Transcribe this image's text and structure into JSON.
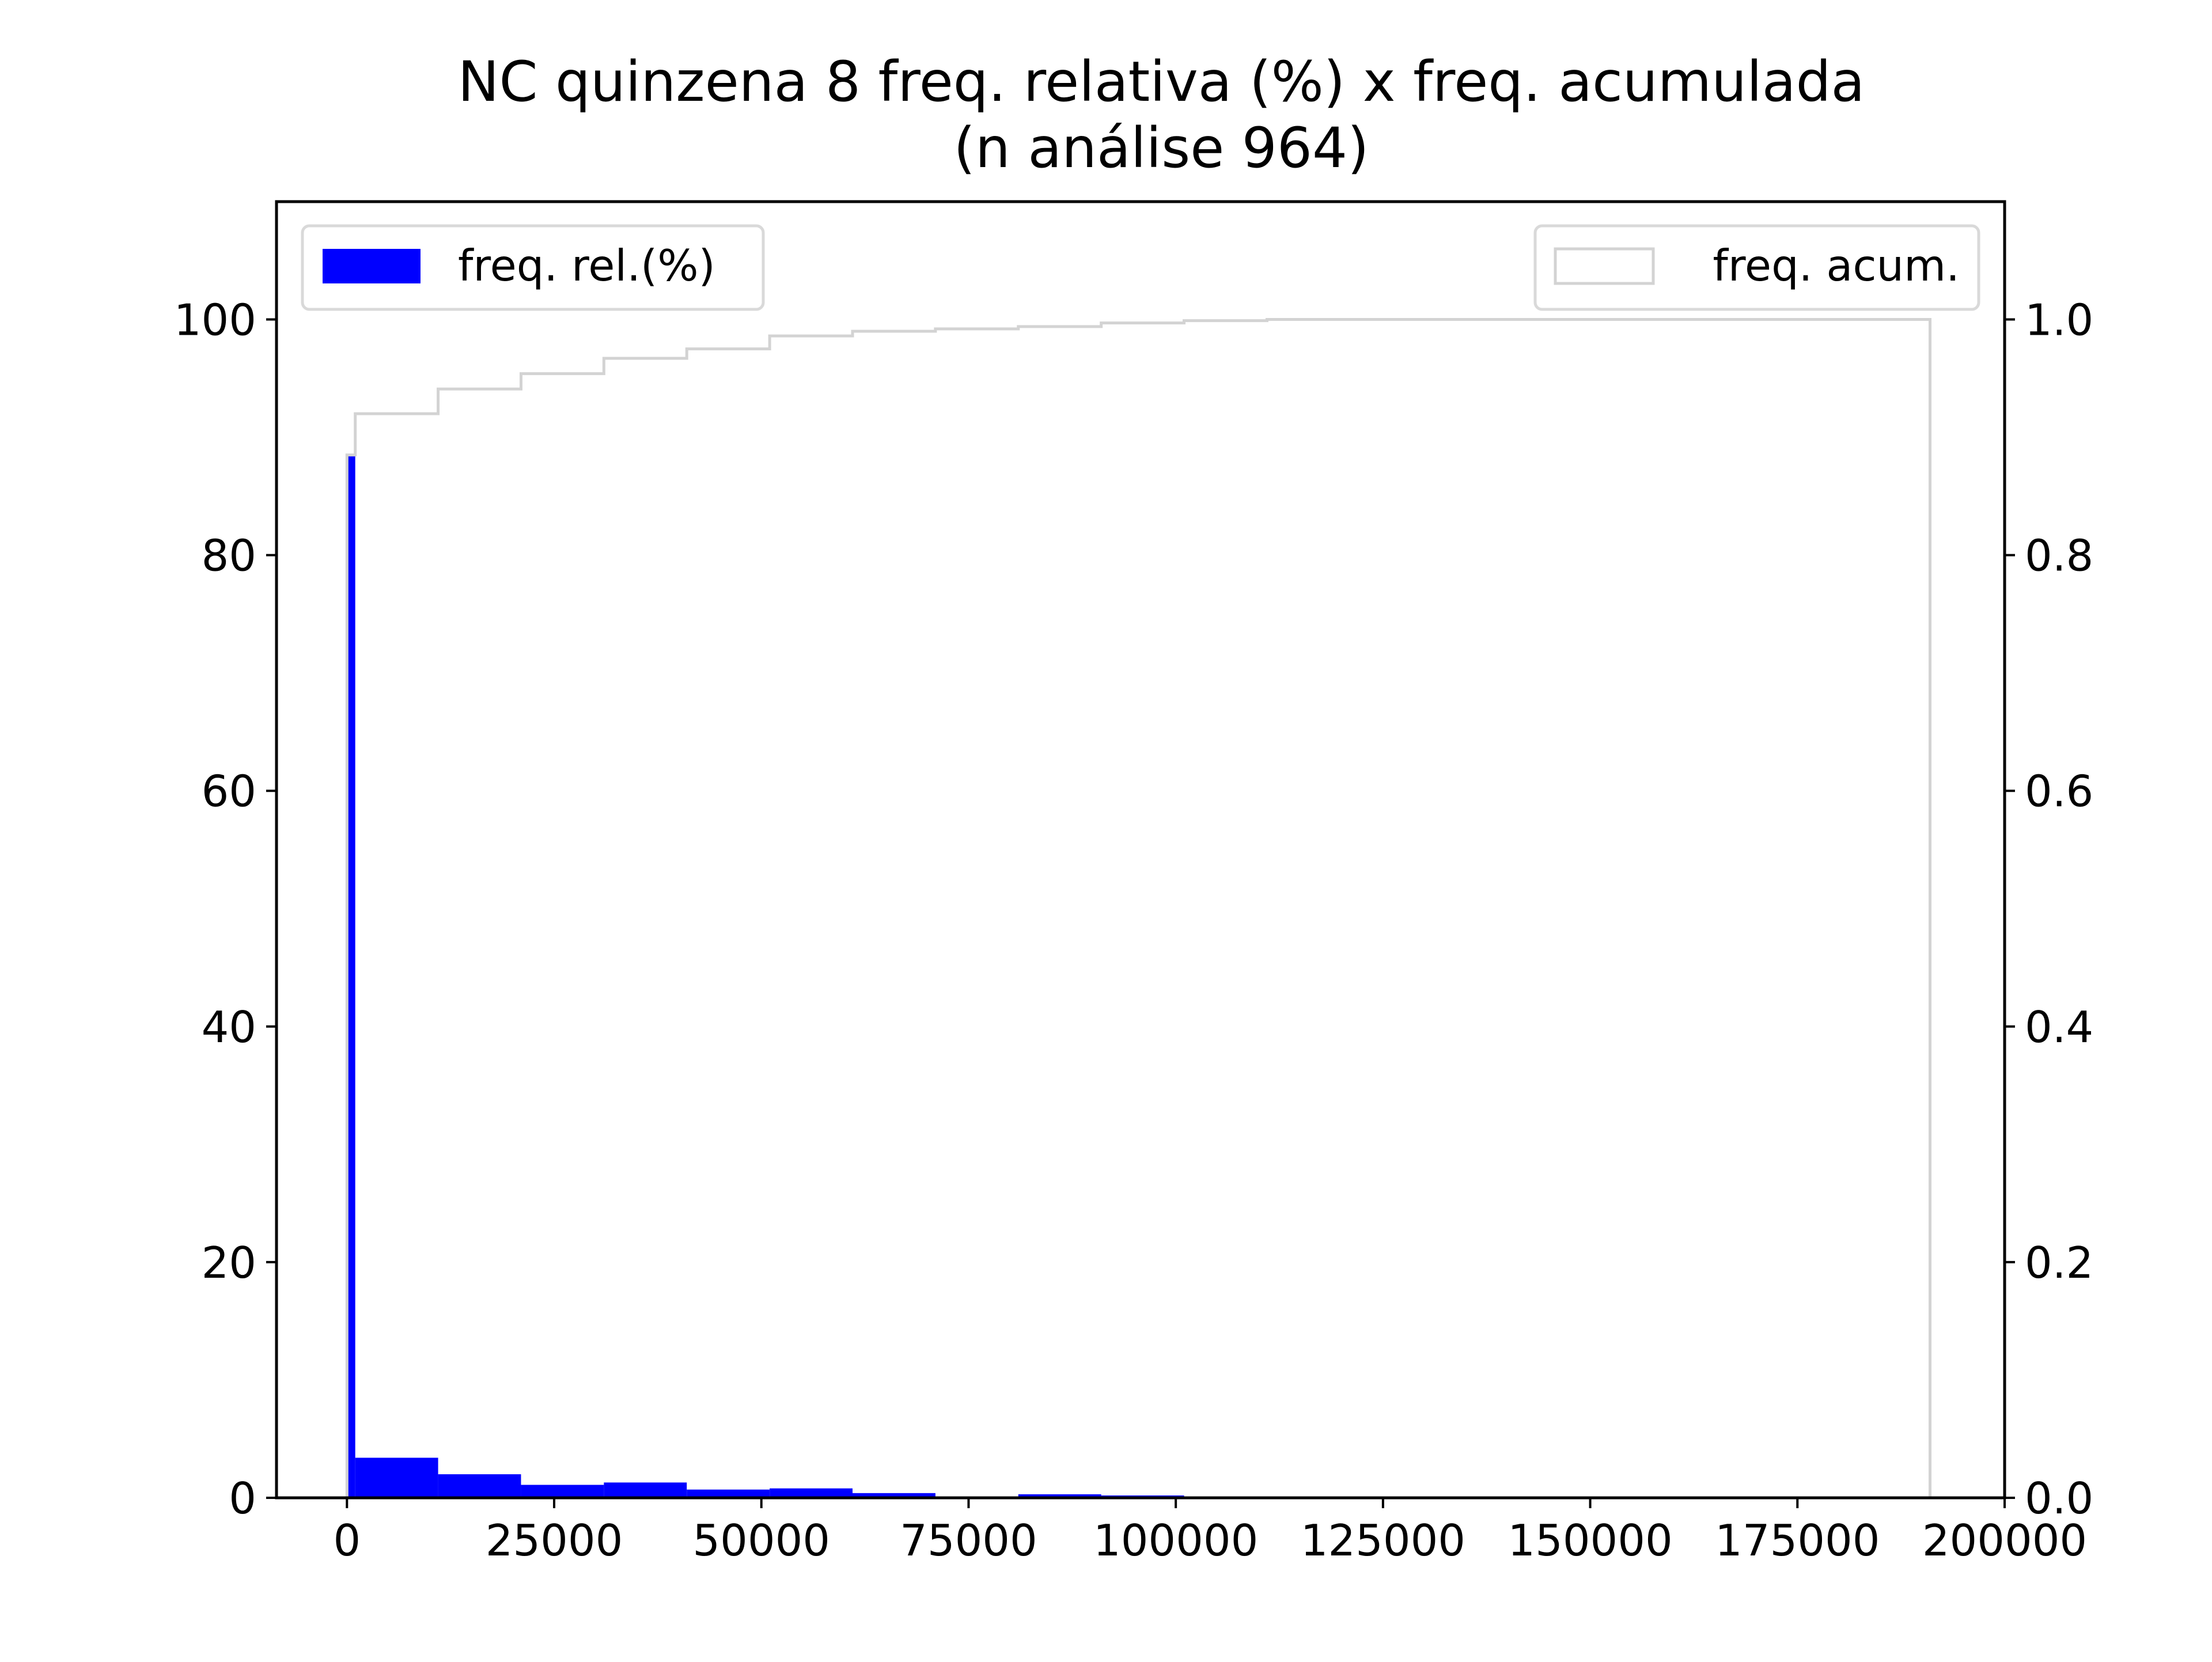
{
  "chart_data": {
    "type": "bar",
    "title": "NC quinzena 8 freq. relativa (%) x freq. acumulada",
    "subtitle": "(n análise 964)",
    "xlabel": "",
    "ylabel": "",
    "y2label": "",
    "xlim": [
      -8500,
      200000
    ],
    "ylim": [
      0,
      110
    ],
    "y2lim": [
      0,
      1.1
    ],
    "x_ticks": [
      0,
      25000,
      50000,
      75000,
      100000,
      125000,
      150000,
      175000,
      200000
    ],
    "x_tick_labels": [
      "0",
      "25000",
      "50000",
      "75000",
      "100000",
      "125000",
      "150000",
      "175000",
      "200000"
    ],
    "y_ticks": [
      0,
      20,
      40,
      60,
      80,
      100
    ],
    "y_tick_labels": [
      "0",
      "20",
      "40",
      "60",
      "80",
      "100"
    ],
    "y2_ticks": [
      0.0,
      0.2,
      0.4,
      0.6,
      0.8,
      1.0
    ],
    "y2_tick_labels": [
      "0.0",
      "0.2",
      "0.4",
      "0.6",
      "0.8",
      "1.0"
    ],
    "grid": false,
    "series": [
      {
        "name": "freq. rel.(%)",
        "kind": "histogram",
        "axis": "left",
        "color": "#0000ff",
        "bins": [
          {
            "x0": 0,
            "x1": 1000,
            "value": 88.5
          },
          {
            "x0": 1000,
            "x1": 11000,
            "value": 3.4
          },
          {
            "x0": 11000,
            "x1": 21000,
            "value": 2.0
          },
          {
            "x0": 21000,
            "x1": 31000,
            "value": 1.1
          },
          {
            "x0": 31000,
            "x1": 41000,
            "value": 1.3
          },
          {
            "x0": 41000,
            "x1": 51000,
            "value": 0.7
          },
          {
            "x0": 51000,
            "x1": 61000,
            "value": 0.8
          },
          {
            "x0": 61000,
            "x1": 71000,
            "value": 0.4
          },
          {
            "x0": 71000,
            "x1": 81000,
            "value": 0.1
          },
          {
            "x0": 81000,
            "x1": 91000,
            "value": 0.3
          },
          {
            "x0": 91000,
            "x1": 101000,
            "value": 0.2
          },
          {
            "x0": 101000,
            "x1": 111000,
            "value": 0.0
          },
          {
            "x0": 111000,
            "x1": 191000,
            "value": 0.1
          }
        ]
      },
      {
        "name": "freq. acum.",
        "kind": "step",
        "axis": "right",
        "color": "#d3d3d3",
        "bins": [
          {
            "x0": 0,
            "x1": 1000,
            "value": 0.885
          },
          {
            "x0": 1000,
            "x1": 11000,
            "value": 0.92
          },
          {
            "x0": 11000,
            "x1": 21000,
            "value": 0.941
          },
          {
            "x0": 21000,
            "x1": 31000,
            "value": 0.954
          },
          {
            "x0": 31000,
            "x1": 41000,
            "value": 0.967
          },
          {
            "x0": 41000,
            "x1": 51000,
            "value": 0.975
          },
          {
            "x0": 51000,
            "x1": 61000,
            "value": 0.986
          },
          {
            "x0": 61000,
            "x1": 71000,
            "value": 0.99
          },
          {
            "x0": 71000,
            "x1": 81000,
            "value": 0.992
          },
          {
            "x0": 81000,
            "x1": 91000,
            "value": 0.994
          },
          {
            "x0": 91000,
            "x1": 101000,
            "value": 0.997
          },
          {
            "x0": 101000,
            "x1": 111000,
            "value": 0.999
          },
          {
            "x0": 111000,
            "x1": 191000,
            "value": 1.0
          }
        ]
      }
    ],
    "legends": [
      {
        "label": "freq. rel.(%)",
        "placement": "upper left",
        "style": "filled",
        "color": "#0000ff"
      },
      {
        "label": "freq. acum.",
        "placement": "upper right",
        "style": "outline",
        "color": "#d3d3d3"
      }
    ]
  }
}
